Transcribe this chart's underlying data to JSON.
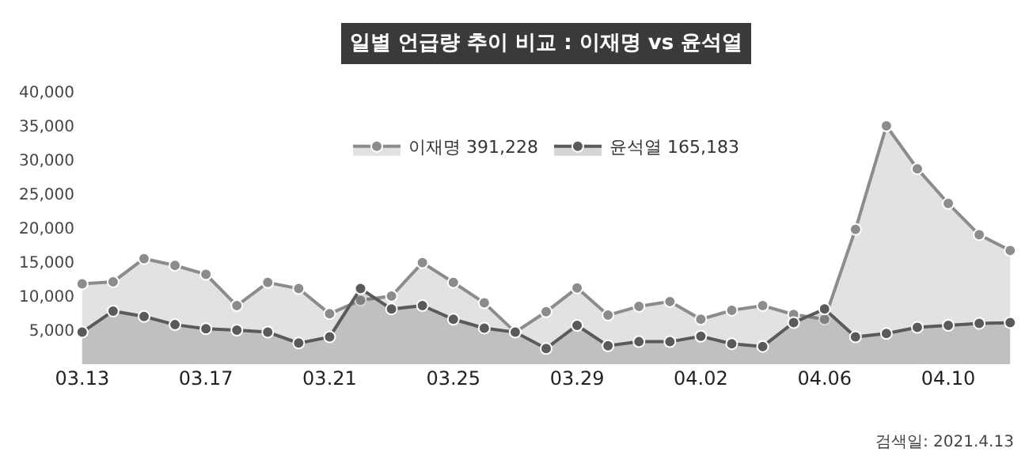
{
  "chart_data": {
    "type": "area",
    "title": "일별 언급량 추이 비교 : 이재명 vs 윤석열",
    "categories": [
      "03.13",
      null,
      null,
      null,
      "03.17",
      null,
      null,
      null,
      "03.21",
      null,
      null,
      null,
      "03.25",
      null,
      null,
      null,
      "03.29",
      null,
      null,
      null,
      "04.02",
      null,
      null,
      null,
      "04.06",
      null,
      null,
      null,
      "04.10",
      null,
      null
    ],
    "series": [
      {
        "name": "이재명 391,228",
        "color": "#8c8c8c",
        "values": [
          11800,
          12100,
          15500,
          14500,
          13200,
          8600,
          12000,
          11100,
          7400,
          9400,
          10000,
          14900,
          12000,
          9000,
          4700,
          7700,
          11200,
          7200,
          8500,
          9200,
          6600,
          7900,
          8600,
          7300,
          6600,
          19800,
          35000,
          28700,
          23600,
          19000,
          16700
        ]
      },
      {
        "name": "윤석열 165,183",
        "color": "#5a5a5a",
        "values": [
          4700,
          7800,
          7000,
          5800,
          5200,
          5000,
          4700,
          3100,
          4000,
          11100,
          8100,
          8600,
          6600,
          5300,
          4700,
          2300,
          5700,
          2700,
          3300,
          3300,
          4100,
          3000,
          2600,
          6100,
          8100,
          4000,
          4500,
          5400,
          5700,
          6000,
          6100
        ]
      }
    ],
    "ylim": [
      0,
      40000
    ],
    "yticks": [
      {
        "value": 5000,
        "label": "5,000"
      },
      {
        "value": 10000,
        "label": "10,000"
      },
      {
        "value": 15000,
        "label": "15,000"
      },
      {
        "value": 20000,
        "label": "20,000"
      },
      {
        "value": 25000,
        "label": "25,000"
      },
      {
        "value": 30000,
        "label": "30,000"
      },
      {
        "value": 35000,
        "label": "35,000"
      },
      {
        "value": 40000,
        "label": "40,000"
      }
    ],
    "marker": "circle",
    "legend": "top",
    "annotations": [
      "검색일: 2021.4.13"
    ]
  }
}
